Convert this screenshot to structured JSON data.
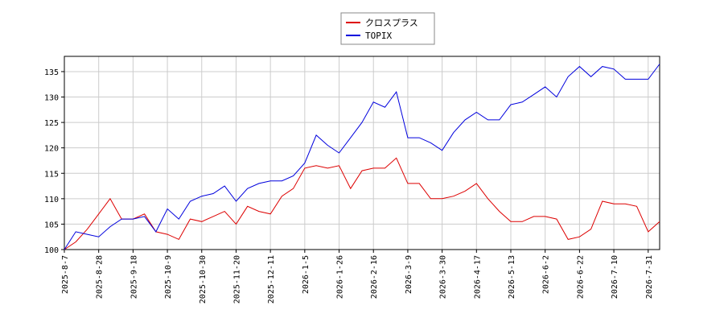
{
  "chart_data": {
    "type": "line",
    "x": [
      "2025-8-7",
      "2025-8-14",
      "2025-8-21",
      "2025-8-28",
      "2025-9-4",
      "2025-9-11",
      "2025-9-18",
      "2025-9-25",
      "2025-10-2",
      "2025-10-9",
      "2025-10-16",
      "2025-10-23",
      "2025-10-30",
      "2025-11-6",
      "2025-11-13",
      "2025-11-20",
      "2025-11-27",
      "2025-12-4",
      "2025-12-11",
      "2025-12-19",
      "2025-12-26",
      "2026-1-5",
      "2026-1-13",
      "2026-1-20",
      "2026-1-26",
      "2026-2-2",
      "2026-2-9",
      "2026-2-16",
      "2026-2-24",
      "2026-3-2",
      "2026-3-9",
      "2026-3-16",
      "2026-3-23",
      "2026-3-30",
      "2026-4-6",
      "2026-4-13",
      "2026-4-17",
      "2026-4-24",
      "2026-5-6",
      "2026-5-13",
      "2026-5-20",
      "2026-5-26",
      "2026-6-2",
      "2026-6-9",
      "2026-6-16",
      "2026-6-22",
      "2026-6-29",
      "2026-7-3",
      "2026-7-10",
      "2026-7-17",
      "2026-7-24",
      "2026-7-31",
      "2026-8-7"
    ],
    "series": [
      {
        "name": "クロスプラス",
        "color": "#dd0000",
        "values": [
          100,
          101.5,
          104,
          107,
          110,
          106,
          106,
          107,
          103.5,
          103,
          102,
          106,
          105.5,
          106.5,
          107.5,
          105,
          108.5,
          107.5,
          107,
          110.5,
          112,
          116,
          116.5,
          116,
          116.5,
          112,
          115.5,
          116,
          116,
          118,
          113,
          113,
          110,
          110,
          110.5,
          111.5,
          113,
          110,
          107.5,
          105.5,
          105.5,
          106.5,
          106.5,
          106,
          102,
          102.5,
          104,
          109.5,
          109,
          109,
          108.5,
          103.5,
          105.5
        ]
      },
      {
        "name": "TOPIX",
        "color": "#0000dd",
        "values": [
          100,
          103.5,
          103,
          102.5,
          104.5,
          106,
          106,
          106.5,
          103.5,
          108,
          106,
          109.5,
          110.5,
          111,
          112.5,
          109.5,
          112,
          113,
          113.5,
          113.5,
          114.5,
          117,
          122.5,
          120.5,
          119,
          122,
          125,
          129,
          128,
          131,
          122,
          122,
          121,
          119.5,
          123,
          125.5,
          127,
          125.5,
          125.5,
          128.5,
          129,
          130.5,
          132,
          130,
          134,
          136,
          134,
          136,
          135.5,
          133.5,
          133.5,
          133.5,
          136.5
        ]
      }
    ],
    "ylim": [
      100,
      138
    ],
    "yticks": [
      100,
      105,
      110,
      115,
      120,
      125,
      130,
      135
    ],
    "xticks": [
      "2025-8-7",
      "2025-8-28",
      "2025-9-18",
      "2025-10-9",
      "2025-10-30",
      "2025-11-20",
      "2025-12-11",
      "2026-1-5",
      "2026-1-26",
      "2026-2-16",
      "2026-3-9",
      "2026-3-30",
      "2026-4-17",
      "2026-5-13",
      "2026-6-2",
      "2026-6-22",
      "2026-7-10",
      "2026-7-31"
    ],
    "grid": true,
    "legend": "top"
  }
}
